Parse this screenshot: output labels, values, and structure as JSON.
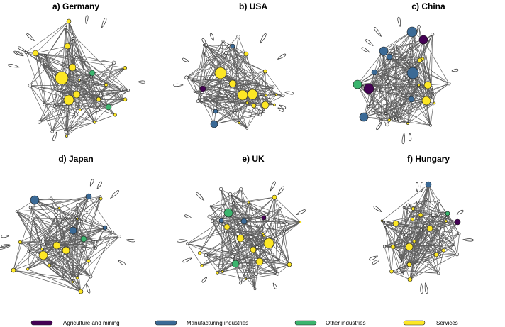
{
  "panels": [
    {
      "title": "a) Germany"
    },
    {
      "title": "b) USA"
    },
    {
      "title": "c) China"
    },
    {
      "title": "d) Japan"
    },
    {
      "title": "e) UK"
    },
    {
      "title": "f) Hungary"
    }
  ],
  "legend": [
    {
      "label": "Agriculture and mining",
      "color": "#440154"
    },
    {
      "label": "Manufacturing industries",
      "color": "#3b6a96"
    },
    {
      "label": "Other industries",
      "color": "#3bb56e"
    },
    {
      "label": "Services",
      "color": "#fde725"
    }
  ],
  "colors": {
    "edge": "#2b2b2b",
    "node_outline": "#1a1a1a",
    "minor_node": "#f4f4f4"
  }
}
